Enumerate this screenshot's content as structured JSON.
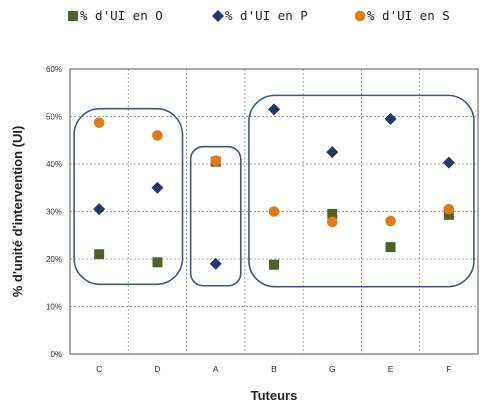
{
  "chart_data": {
    "type": "scatter",
    "xlabel": "Tuteurs",
    "ylabel": "% d'unité d'intervention (UI)",
    "categories": [
      "C",
      "D",
      "A",
      "B",
      "G",
      "E",
      "F"
    ],
    "ylim": [
      0,
      60
    ],
    "yticks": [
      0,
      10,
      20,
      30,
      40,
      50,
      60
    ],
    "ytick_labels": [
      "0%",
      "10%",
      "20%",
      "30%",
      "40%",
      "50%",
      "60%"
    ],
    "grid": true,
    "legend_position": "top",
    "series": [
      {
        "name": "% d'UI en O",
        "marker": "square",
        "color": "#4f6228",
        "values": [
          21,
          19.3,
          40.5,
          18.8,
          29.5,
          22.5,
          29.3
        ]
      },
      {
        "name": "% d'UI en P",
        "marker": "diamond",
        "color": "#1f3864",
        "values": [
          30.5,
          35,
          19,
          51.5,
          42.5,
          49.5,
          40.3
        ]
      },
      {
        "name": "% d'UI en S",
        "marker": "circle",
        "color": "#e07b1a",
        "values": [
          48.7,
          46,
          40.7,
          30,
          27.8,
          28,
          30.5
        ]
      }
    ],
    "groups": [
      {
        "categories": [
          "C",
          "D"
        ]
      },
      {
        "categories": [
          "A"
        ]
      },
      {
        "categories": [
          "B",
          "G",
          "E",
          "F"
        ]
      }
    ]
  }
}
